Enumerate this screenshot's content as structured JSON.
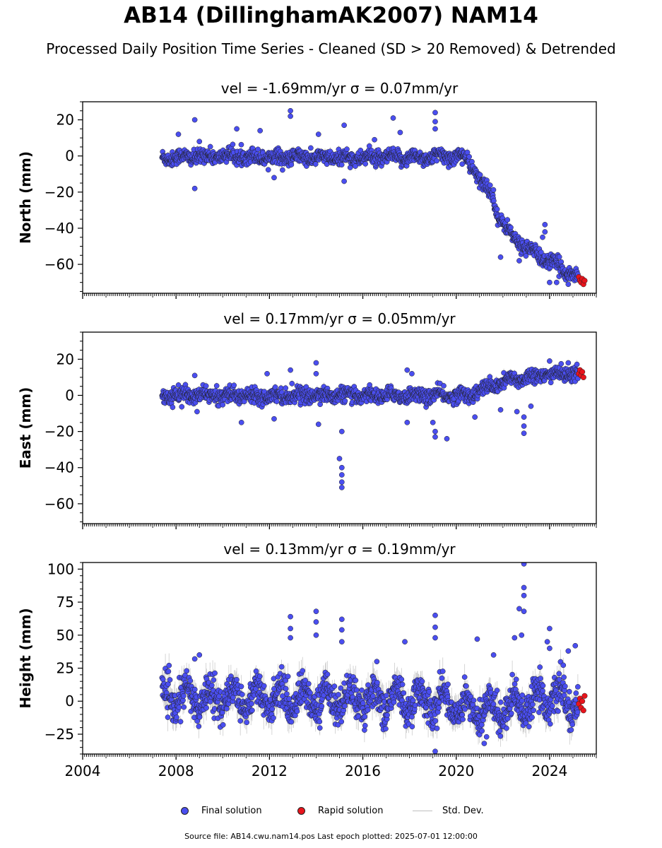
{
  "figure": {
    "title": "AB14 (DillinghamAK2007) NAM14",
    "subtitle": "Processed Daily Position Time Series - Cleaned (SD > 20 Removed) & Detrended",
    "footer": "Source file: AB14.cwu.nam14.pos  Last epoch plotted: 2025-07-01 12:00:00"
  },
  "legend": {
    "final": "Final solution",
    "rapid": "Rapid solution",
    "std": "Std. Dev."
  },
  "colors": {
    "final": "#4a4ef0",
    "rapid": "#e8141c",
    "std": "#bfbfbf",
    "marker_edge": "#202020"
  },
  "chart_data": [
    {
      "type": "scatter",
      "title": "vel = -1.69mm/yr   σ = 0.07mm/yr",
      "ylabel": "North (mm)",
      "xlim": [
        2004.0,
        2026.0
      ],
      "ylim": [
        -76,
        30
      ],
      "yticks": [
        20,
        0,
        -20,
        -40,
        -60
      ],
      "start_year": 2007.4,
      "series": [
        {
          "name": "Final solution",
          "trend_x": [
            2007.4,
            2010.0,
            2014.0,
            2018.0,
            2020.3,
            2020.8,
            2021.0,
            2021.6,
            2021.8,
            2022.5,
            2023.5,
            2024.5,
            2025.2
          ],
          "trend_y": [
            -1,
            0,
            -1,
            -1,
            0,
            -8,
            -14,
            -22,
            -34,
            -46,
            -55,
            -62,
            -67
          ],
          "outliers": [
            [
              2008.1,
              12
            ],
            [
              2008.8,
              20
            ],
            [
              2008.8,
              -18
            ],
            [
              2009.0,
              8
            ],
            [
              2010.6,
              15
            ],
            [
              2011.6,
              14
            ],
            [
              2012.2,
              -12
            ],
            [
              2012.9,
              25
            ],
            [
              2012.9,
              22
            ],
            [
              2014.1,
              12
            ],
            [
              2015.2,
              17
            ],
            [
              2015.2,
              -14
            ],
            [
              2016.5,
              9
            ],
            [
              2017.3,
              21
            ],
            [
              2017.6,
              13
            ],
            [
              2019.1,
              24
            ],
            [
              2019.1,
              19
            ],
            [
              2019.1,
              15
            ],
            [
              2021.9,
              -56
            ],
            [
              2022.7,
              -58
            ],
            [
              2023.7,
              -45
            ],
            [
              2023.8,
              -38
            ],
            [
              2023.8,
              -42
            ],
            [
              2024.0,
              -70
            ],
            [
              2024.3,
              -70
            ],
            [
              2024.8,
              -71
            ]
          ]
        },
        {
          "name": "Rapid solution",
          "x": [
            2025.25,
            2025.3,
            2025.35,
            2025.4,
            2025.45,
            2025.5
          ],
          "y": [
            -67,
            -69,
            -70,
            -68,
            -71,
            -69
          ]
        }
      ]
    },
    {
      "type": "scatter",
      "title": "vel = 0.17mm/yr   σ = 0.05mm/yr",
      "ylabel": "East (mm)",
      "xlim": [
        2004.0,
        2026.0
      ],
      "ylim": [
        -71,
        35
      ],
      "yticks": [
        20,
        0,
        -20,
        -40,
        -60
      ],
      "start_year": 2007.4,
      "series": [
        {
          "name": "Final solution",
          "trend_x": [
            2007.4,
            2010.0,
            2014.0,
            2018.0,
            2020.5,
            2021.5,
            2022.5,
            2023.5,
            2024.5,
            2025.2
          ],
          "trend_y": [
            0,
            0,
            0,
            0,
            0,
            5,
            9,
            11,
            12,
            12
          ],
          "outliers": [
            [
              2008.8,
              11
            ],
            [
              2008.9,
              -9
            ],
            [
              2010.8,
              -15
            ],
            [
              2011.9,
              12
            ],
            [
              2012.9,
              14
            ],
            [
              2012.2,
              -13
            ],
            [
              2014.0,
              18
            ],
            [
              2014.0,
              12
            ],
            [
              2014.1,
              -16
            ],
            [
              2015.1,
              -20
            ],
            [
              2015.0,
              -35
            ],
            [
              2015.1,
              -40
            ],
            [
              2015.1,
              -44
            ],
            [
              2015.1,
              -48
            ],
            [
              2015.1,
              -51
            ],
            [
              2017.9,
              14
            ],
            [
              2017.9,
              -15
            ],
            [
              2018.1,
              12
            ],
            [
              2019.0,
              -15
            ],
            [
              2019.1,
              -20
            ],
            [
              2019.1,
              -23
            ],
            [
              2019.6,
              -24
            ],
            [
              2020.8,
              -12
            ],
            [
              2021.9,
              -8
            ],
            [
              2022.6,
              -9
            ],
            [
              2022.9,
              -12
            ],
            [
              2022.9,
              -17
            ],
            [
              2022.9,
              -21
            ],
            [
              2023.2,
              -6
            ],
            [
              2024.0,
              19
            ],
            [
              2024.8,
              18
            ]
          ]
        },
        {
          "name": "Rapid solution",
          "x": [
            2025.25,
            2025.3,
            2025.35,
            2025.4,
            2025.45
          ],
          "y": [
            12,
            14,
            11,
            13,
            10
          ]
        }
      ]
    },
    {
      "type": "scatter",
      "title": "vel = 0.13mm/yr   σ = 0.19mm/yr",
      "ylabel": "Height (mm)",
      "xlim": [
        2004.0,
        2026.0
      ],
      "ylim": [
        -40,
        105
      ],
      "yticks": [
        100,
        75,
        50,
        25,
        0,
        -25
      ],
      "xticks": [
        2004,
        2008,
        2012,
        2016,
        2020,
        2024
      ],
      "start_year": 2007.4,
      "series": [
        {
          "name": "Final solution",
          "trend_x": [
            2007.4,
            2010.0,
            2014.0,
            2018.0,
            2020.0,
            2021.0,
            2022.0,
            2024.0,
            2025.2
          ],
          "trend_y": [
            2,
            3,
            2,
            1,
            -2,
            -8,
            -5,
            4,
            -3
          ],
          "outliers": [
            [
              2008.8,
              32
            ],
            [
              2009.0,
              35
            ],
            [
              2012.9,
              64
            ],
            [
              2012.9,
              55
            ],
            [
              2012.9,
              48
            ],
            [
              2014.0,
              68
            ],
            [
              2014.0,
              60
            ],
            [
              2014.0,
              50
            ],
            [
              2015.1,
              62
            ],
            [
              2015.1,
              54
            ],
            [
              2015.1,
              45
            ],
            [
              2016.6,
              30
            ],
            [
              2017.8,
              45
            ],
            [
              2019.1,
              65
            ],
            [
              2019.1,
              56
            ],
            [
              2019.1,
              48
            ],
            [
              2019.1,
              -38
            ],
            [
              2020.9,
              47
            ],
            [
              2021.6,
              35
            ],
            [
              2022.9,
              104
            ],
            [
              2022.9,
              86
            ],
            [
              2022.9,
              80
            ],
            [
              2022.9,
              68
            ],
            [
              2022.7,
              70
            ],
            [
              2022.8,
              50
            ],
            [
              2022.5,
              48
            ],
            [
              2023.9,
              45
            ],
            [
              2024.0,
              40
            ],
            [
              2021.2,
              -32
            ],
            [
              2021.3,
              -27
            ],
            [
              2024.0,
              55
            ],
            [
              2024.8,
              38
            ],
            [
              2025.1,
              42
            ]
          ]
        },
        {
          "name": "Rapid solution",
          "x": [
            2025.25,
            2025.3,
            2025.35,
            2025.4,
            2025.45,
            2025.5
          ],
          "y": [
            -2,
            2,
            -5,
            0,
            -7,
            4
          ]
        }
      ]
    }
  ]
}
